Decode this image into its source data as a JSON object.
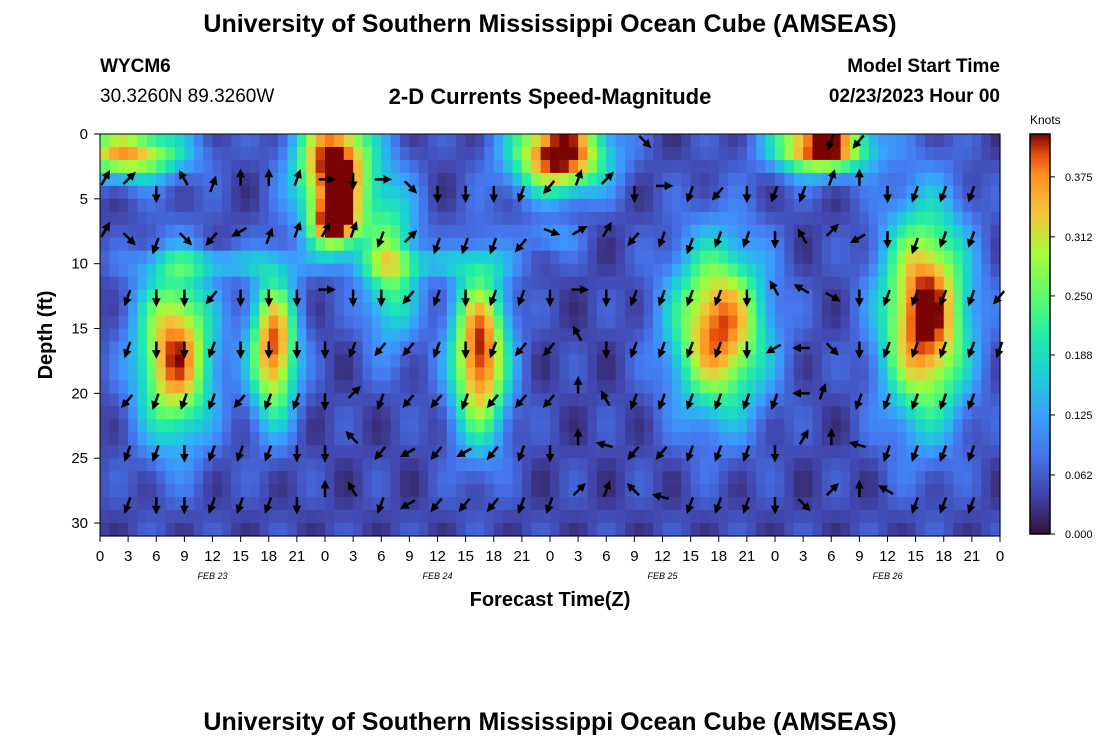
{
  "header": {
    "title": "University of Southern Mississippi Ocean Cube (AMSEAS)",
    "station": "WYCM6",
    "coords": "30.3260N  89.3260W",
    "subtitle": "2-D Currents Speed-Magnitude",
    "model_start_label": "Model Start Time",
    "model_start_value": "02/23/2023 Hour 00"
  },
  "footer": {
    "title": "University of Southern Mississippi Ocean Cube (AMSEAS)"
  },
  "chart_data": {
    "type": "heatmap",
    "title": "2-D Currents Speed-Magnitude",
    "xlabel": "Forecast Time(Z)",
    "ylabel": "Depth (ft)",
    "xlim": [
      0,
      96
    ],
    "ylim": [
      0,
      31
    ],
    "x_tick_values": [
      0,
      3,
      6,
      9,
      12,
      15,
      18,
      21,
      24,
      27,
      30,
      33,
      36,
      39,
      42,
      45,
      48,
      51,
      54,
      57,
      60,
      63,
      66,
      69,
      72,
      75,
      78,
      81,
      84,
      87,
      90,
      93,
      96
    ],
    "x_tick_labels": [
      "0",
      "3",
      "6",
      "9",
      "12",
      "15",
      "18",
      "21",
      "0",
      "3",
      "6",
      "9",
      "12",
      "15",
      "18",
      "21",
      "0",
      "3",
      "6",
      "9",
      "12",
      "15",
      "18",
      "21",
      "0",
      "3",
      "6",
      "9",
      "12",
      "15",
      "18",
      "21",
      "0"
    ],
    "y_ticks": [
      0,
      5,
      10,
      15,
      20,
      25,
      30
    ],
    "day_labels": [
      {
        "hour": 12,
        "label": "FEB 23"
      },
      {
        "hour": 36,
        "label": "FEB 24"
      },
      {
        "hour": 60,
        "label": "FEB 25"
      },
      {
        "hour": 84,
        "label": "FEB 26"
      }
    ],
    "colorbar": {
      "unit": "Knots",
      "min": 0.0,
      "max": 0.42,
      "ticks": [
        "0.000",
        "0.062",
        "0.125",
        "0.188",
        "0.250",
        "0.312",
        "0.375"
      ],
      "tick_values": [
        0.0,
        0.062,
        0.125,
        0.188,
        0.25,
        0.312,
        0.375
      ]
    },
    "high_speed_blobs": [
      {
        "t": 3,
        "d": 1.5,
        "st": 6,
        "sd": 2,
        "amp": 0.32
      },
      {
        "t": 25,
        "d": 2.5,
        "st": 4,
        "sd": 4.5,
        "amp": 0.42
      },
      {
        "t": 25,
        "d": 7,
        "st": 2.5,
        "sd": 2,
        "amp": 0.3
      },
      {
        "t": 49,
        "d": 1.5,
        "st": 5,
        "sd": 3,
        "amp": 0.42
      },
      {
        "t": 77,
        "d": 1,
        "st": 5,
        "sd": 2,
        "amp": 0.42
      },
      {
        "t": 8,
        "d": 17,
        "st": 4,
        "sd": 6.5,
        "amp": 0.36
      },
      {
        "t": 18.5,
        "d": 16.5,
        "st": 2.5,
        "sd": 5.5,
        "amp": 0.36
      },
      {
        "t": 31,
        "d": 10,
        "st": 3,
        "sd": 6,
        "amp": 0.22
      },
      {
        "t": 40.5,
        "d": 17,
        "st": 3,
        "sd": 6.5,
        "amp": 0.38
      },
      {
        "t": 66,
        "d": 15,
        "st": 5,
        "sd": 6.5,
        "amp": 0.36
      },
      {
        "t": 88,
        "d": 14,
        "st": 4.5,
        "sd": 8,
        "amp": 0.4
      },
      {
        "t": 12,
        "d": 10,
        "st": 8,
        "sd": 1,
        "amp": 0.1
      },
      {
        "t": 35,
        "d": 10,
        "st": 10,
        "sd": 1,
        "amp": 0.08
      },
      {
        "t": 48,
        "d": 8,
        "st": 3,
        "sd": 1.2,
        "amp": 0.08
      }
    ],
    "vectors": [
      {
        "t": 0.5,
        "d": 3.5,
        "dir": 30
      },
      {
        "t": 3,
        "d": 3.5,
        "dir": 45
      },
      {
        "t": 6,
        "d": 4.5,
        "dir": 180
      },
      {
        "t": 9,
        "d": 3.5,
        "dir": 330
      },
      {
        "t": 12,
        "d": 4,
        "dir": 20
      },
      {
        "t": 15,
        "d": 3.5,
        "dir": 0
      },
      {
        "t": 18,
        "d": 3.5,
        "dir": 0
      },
      {
        "t": 21,
        "d": 3.5,
        "dir": 20
      },
      {
        "t": 24,
        "d": 3.5,
        "dir": 90
      },
      {
        "t": 27,
        "d": 3.5,
        "dir": 180
      },
      {
        "t": 30,
        "d": 3.5,
        "dir": 90
      },
      {
        "t": 33,
        "d": 4,
        "dir": 135
      },
      {
        "t": 36,
        "d": 4.5,
        "dir": 180
      },
      {
        "t": 39,
        "d": 4.5,
        "dir": 180
      },
      {
        "t": 42,
        "d": 4.5,
        "dir": 180
      },
      {
        "t": 45,
        "d": 4.5,
        "dir": 200
      },
      {
        "t": 48,
        "d": 4,
        "dir": 220
      },
      {
        "t": 51,
        "d": 3.5,
        "dir": 20
      },
      {
        "t": 54,
        "d": 3.5,
        "dir": 45
      },
      {
        "t": 57,
        "d": 4.5,
        "dir": 180
      },
      {
        "t": 60,
        "d": 4,
        "dir": 90
      },
      {
        "t": 63,
        "d": 4.5,
        "dir": 200
      },
      {
        "t": 66,
        "d": 4.5,
        "dir": 220
      },
      {
        "t": 69,
        "d": 4.5,
        "dir": 180
      },
      {
        "t": 72,
        "d": 4.5,
        "dir": 200
      },
      {
        "t": 75,
        "d": 4.5,
        "dir": 200
      },
      {
        "t": 78,
        "d": 3.5,
        "dir": 20
      },
      {
        "t": 81,
        "d": 3.5,
        "dir": 0
      },
      {
        "t": 84,
        "d": 4.5,
        "dir": 180
      },
      {
        "t": 87,
        "d": 4.5,
        "dir": 200
      },
      {
        "t": 90,
        "d": 4.5,
        "dir": 200
      },
      {
        "t": 93,
        "d": 4.5,
        "dir": 200
      },
      {
        "t": 0.5,
        "d": 7.5,
        "dir": 30
      },
      {
        "t": 3,
        "d": 8,
        "dir": 135
      },
      {
        "t": 6,
        "d": 8.5,
        "dir": 200
      },
      {
        "t": 9,
        "d": 8,
        "dir": 135
      },
      {
        "t": 12,
        "d": 8,
        "dir": 220
      },
      {
        "t": 15,
        "d": 7.5,
        "dir": 240
      },
      {
        "t": 18,
        "d": 8,
        "dir": 20
      },
      {
        "t": 21,
        "d": 7.5,
        "dir": 20
      },
      {
        "t": 24,
        "d": 7.5,
        "dir": 30
      },
      {
        "t": 27,
        "d": 7.5,
        "dir": 20
      },
      {
        "t": 30,
        "d": 8,
        "dir": 200
      },
      {
        "t": 33,
        "d": 8,
        "dir": 45
      },
      {
        "t": 36,
        "d": 8.5,
        "dir": 200
      },
      {
        "t": 39,
        "d": 8.5,
        "dir": 200
      },
      {
        "t": 42,
        "d": 8.5,
        "dir": 200
      },
      {
        "t": 45,
        "d": 8.5,
        "dir": 220
      },
      {
        "t": 48,
        "d": 7.5,
        "dir": 110
      },
      {
        "t": 51,
        "d": 7.5,
        "dir": 60
      },
      {
        "t": 54,
        "d": 7.5,
        "dir": 30
      },
      {
        "t": 57,
        "d": 8,
        "dir": 220
      },
      {
        "t": 60,
        "d": 8,
        "dir": 200
      },
      {
        "t": 63,
        "d": 8.5,
        "dir": 200
      },
      {
        "t": 66,
        "d": 8,
        "dir": 200
      },
      {
        "t": 69,
        "d": 8,
        "dir": 200
      },
      {
        "t": 72,
        "d": 8,
        "dir": 180
      },
      {
        "t": 75,
        "d": 8,
        "dir": 330
      },
      {
        "t": 78,
        "d": 7.5,
        "dir": 45
      },
      {
        "t": 81,
        "d": 8,
        "dir": 240
      },
      {
        "t": 84,
        "d": 8,
        "dir": 180
      },
      {
        "t": 87,
        "d": 8.5,
        "dir": 200
      },
      {
        "t": 90,
        "d": 8,
        "dir": 200
      },
      {
        "t": 93,
        "d": 8,
        "dir": 200
      },
      {
        "t": 3,
        "d": 12.5,
        "dir": 200
      },
      {
        "t": 6,
        "d": 12.5,
        "dir": 180
      },
      {
        "t": 9,
        "d": 12.5,
        "dir": 180
      },
      {
        "t": 12,
        "d": 12.5,
        "dir": 220
      },
      {
        "t": 15,
        "d": 12.5,
        "dir": 180
      },
      {
        "t": 18,
        "d": 12.5,
        "dir": 180
      },
      {
        "t": 21,
        "d": 12.5,
        "dir": 180
      },
      {
        "t": 24,
        "d": 12,
        "dir": 90
      },
      {
        "t": 27,
        "d": 12.5,
        "dir": 180
      },
      {
        "t": 30,
        "d": 12.5,
        "dir": 180
      },
      {
        "t": 33,
        "d": 12.5,
        "dir": 220
      },
      {
        "t": 36,
        "d": 12.5,
        "dir": 200
      },
      {
        "t": 39,
        "d": 12.5,
        "dir": 180
      },
      {
        "t": 42,
        "d": 12.5,
        "dir": 200
      },
      {
        "t": 45,
        "d": 12.5,
        "dir": 200
      },
      {
        "t": 48,
        "d": 12.5,
        "dir": 180
      },
      {
        "t": 51,
        "d": 12,
        "dir": 90
      },
      {
        "t": 54,
        "d": 12.5,
        "dir": 180
      },
      {
        "t": 57,
        "d": 12.5,
        "dir": 200
      },
      {
        "t": 60,
        "d": 12.5,
        "dir": 200
      },
      {
        "t": 63,
        "d": 12.5,
        "dir": 200
      },
      {
        "t": 66,
        "d": 12.5,
        "dir": 200
      },
      {
        "t": 69,
        "d": 12.5,
        "dir": 180
      },
      {
        "t": 72,
        "d": 12,
        "dir": 330
      },
      {
        "t": 75,
        "d": 12,
        "dir": 300
      },
      {
        "t": 78,
        "d": 12.5,
        "dir": 120
      },
      {
        "t": 81,
        "d": 12.5,
        "dir": 180
      },
      {
        "t": 84,
        "d": 12.5,
        "dir": 200
      },
      {
        "t": 87,
        "d": 12.5,
        "dir": 200
      },
      {
        "t": 90,
        "d": 12.5,
        "dir": 200
      },
      {
        "t": 93,
        "d": 12.5,
        "dir": 200
      },
      {
        "t": 96,
        "d": 12.5,
        "dir": 220
      },
      {
        "t": 3,
        "d": 16.5,
        "dir": 200
      },
      {
        "t": 6,
        "d": 16.5,
        "dir": 180
      },
      {
        "t": 9,
        "d": 16.5,
        "dir": 180
      },
      {
        "t": 12,
        "d": 16.5,
        "dir": 200
      },
      {
        "t": 15,
        "d": 16.5,
        "dir": 180
      },
      {
        "t": 18,
        "d": 16.5,
        "dir": 180
      },
      {
        "t": 21,
        "d": 16.5,
        "dir": 180
      },
      {
        "t": 24,
        "d": 16.5,
        "dir": 180
      },
      {
        "t": 27,
        "d": 16.5,
        "dir": 200
      },
      {
        "t": 30,
        "d": 16.5,
        "dir": 220
      },
      {
        "t": 33,
        "d": 16.5,
        "dir": 220
      },
      {
        "t": 36,
        "d": 16.5,
        "dir": 200
      },
      {
        "t": 39,
        "d": 16.5,
        "dir": 180
      },
      {
        "t": 42,
        "d": 16.5,
        "dir": 200
      },
      {
        "t": 45,
        "d": 16.5,
        "dir": 220
      },
      {
        "t": 48,
        "d": 16.5,
        "dir": 220
      },
      {
        "t": 51,
        "d": 15.5,
        "dir": 330
      },
      {
        "t": 54,
        "d": 16.5,
        "dir": 180
      },
      {
        "t": 57,
        "d": 16.5,
        "dir": 200
      },
      {
        "t": 60,
        "d": 16.5,
        "dir": 200
      },
      {
        "t": 63,
        "d": 16.5,
        "dir": 200
      },
      {
        "t": 66,
        "d": 16.5,
        "dir": 200
      },
      {
        "t": 69,
        "d": 16.5,
        "dir": 180
      },
      {
        "t": 72,
        "d": 16.5,
        "dir": 240
      },
      {
        "t": 75,
        "d": 16.5,
        "dir": 270
      },
      {
        "t": 78,
        "d": 16.5,
        "dir": 135
      },
      {
        "t": 81,
        "d": 16.5,
        "dir": 180
      },
      {
        "t": 84,
        "d": 16.5,
        "dir": 200
      },
      {
        "t": 87,
        "d": 16.5,
        "dir": 200
      },
      {
        "t": 90,
        "d": 16.5,
        "dir": 200
      },
      {
        "t": 93,
        "d": 16.5,
        "dir": 200
      },
      {
        "t": 96,
        "d": 16.5,
        "dir": 200
      },
      {
        "t": 3,
        "d": 20.5,
        "dir": 220
      },
      {
        "t": 6,
        "d": 20.5,
        "dir": 200
      },
      {
        "t": 9,
        "d": 20.5,
        "dir": 200
      },
      {
        "t": 12,
        "d": 20.5,
        "dir": 200
      },
      {
        "t": 15,
        "d": 20.5,
        "dir": 220
      },
      {
        "t": 18,
        "d": 20.5,
        "dir": 200
      },
      {
        "t": 21,
        "d": 20.5,
        "dir": 200
      },
      {
        "t": 24,
        "d": 20.5,
        "dir": 180
      },
      {
        "t": 27,
        "d": 20,
        "dir": 45
      },
      {
        "t": 30,
        "d": 20.5,
        "dir": 200
      },
      {
        "t": 33,
        "d": 20.5,
        "dir": 220
      },
      {
        "t": 36,
        "d": 20.5,
        "dir": 220
      },
      {
        "t": 39,
        "d": 20.5,
        "dir": 200
      },
      {
        "t": 42,
        "d": 20.5,
        "dir": 220
      },
      {
        "t": 45,
        "d": 20.5,
        "dir": 220
      },
      {
        "t": 48,
        "d": 20.5,
        "dir": 220
      },
      {
        "t": 51,
        "d": 19.5,
        "dir": 0
      },
      {
        "t": 54,
        "d": 20.5,
        "dir": 330
      },
      {
        "t": 57,
        "d": 20.5,
        "dir": 200
      },
      {
        "t": 60,
        "d": 20.5,
        "dir": 200
      },
      {
        "t": 63,
        "d": 20.5,
        "dir": 200
      },
      {
        "t": 66,
        "d": 20.5,
        "dir": 200
      },
      {
        "t": 69,
        "d": 20.5,
        "dir": 200
      },
      {
        "t": 72,
        "d": 20.5,
        "dir": 200
      },
      {
        "t": 75,
        "d": 20,
        "dir": 270
      },
      {
        "t": 77,
        "d": 20,
        "dir": 20
      },
      {
        "t": 81,
        "d": 20.5,
        "dir": 200
      },
      {
        "t": 84,
        "d": 20.5,
        "dir": 200
      },
      {
        "t": 87,
        "d": 20.5,
        "dir": 200
      },
      {
        "t": 90,
        "d": 20.5,
        "dir": 200
      },
      {
        "t": 93,
        "d": 20.5,
        "dir": 200
      },
      {
        "t": 3,
        "d": 24.5,
        "dir": 200
      },
      {
        "t": 6,
        "d": 24.5,
        "dir": 200
      },
      {
        "t": 9,
        "d": 24.5,
        "dir": 180
      },
      {
        "t": 12,
        "d": 24.5,
        "dir": 200
      },
      {
        "t": 15,
        "d": 24.5,
        "dir": 200
      },
      {
        "t": 18,
        "d": 24.5,
        "dir": 200
      },
      {
        "t": 21,
        "d": 24.5,
        "dir": 180
      },
      {
        "t": 24,
        "d": 24.5,
        "dir": 180
      },
      {
        "t": 27,
        "d": 23.5,
        "dir": 315
      },
      {
        "t": 30,
        "d": 24.5,
        "dir": 220
      },
      {
        "t": 33,
        "d": 24.5,
        "dir": 240
      },
      {
        "t": 36,
        "d": 24.5,
        "dir": 220
      },
      {
        "t": 39,
        "d": 24.5,
        "dir": 240
      },
      {
        "t": 42,
        "d": 24.5,
        "dir": 220
      },
      {
        "t": 45,
        "d": 24.5,
        "dir": 200
      },
      {
        "t": 48,
        "d": 24.5,
        "dir": 180
      },
      {
        "t": 51,
        "d": 23.5,
        "dir": 0
      },
      {
        "t": 54,
        "d": 24,
        "dir": 285
      },
      {
        "t": 57,
        "d": 24.5,
        "dir": 220
      },
      {
        "t": 60,
        "d": 24.5,
        "dir": 220
      },
      {
        "t": 63,
        "d": 24.5,
        "dir": 200
      },
      {
        "t": 66,
        "d": 24.5,
        "dir": 200
      },
      {
        "t": 69,
        "d": 24.5,
        "dir": 200
      },
      {
        "t": 72,
        "d": 24.5,
        "dir": 180
      },
      {
        "t": 75,
        "d": 23.5,
        "dir": 30
      },
      {
        "t": 78,
        "d": 23.5,
        "dir": 0
      },
      {
        "t": 81,
        "d": 24,
        "dir": 285
      },
      {
        "t": 84,
        "d": 24.5,
        "dir": 200
      },
      {
        "t": 87,
        "d": 24.5,
        "dir": 200
      },
      {
        "t": 90,
        "d": 24.5,
        "dir": 200
      },
      {
        "t": 93,
        "d": 24.5,
        "dir": 200
      },
      {
        "t": 3,
        "d": 28.5,
        "dir": 200
      },
      {
        "t": 6,
        "d": 28.5,
        "dir": 180
      },
      {
        "t": 9,
        "d": 28.5,
        "dir": 180
      },
      {
        "t": 12,
        "d": 28.5,
        "dir": 200
      },
      {
        "t": 15,
        "d": 28.5,
        "dir": 200
      },
      {
        "t": 18,
        "d": 28.5,
        "dir": 200
      },
      {
        "t": 21,
        "d": 28.5,
        "dir": 180
      },
      {
        "t": 24,
        "d": 27.5,
        "dir": 0
      },
      {
        "t": 27,
        "d": 27.5,
        "dir": 330
      },
      {
        "t": 30,
        "d": 28.5,
        "dir": 200
      },
      {
        "t": 33,
        "d": 28.5,
        "dir": 240
      },
      {
        "t": 36,
        "d": 28.5,
        "dir": 220
      },
      {
        "t": 39,
        "d": 28.5,
        "dir": 220
      },
      {
        "t": 42,
        "d": 28.5,
        "dir": 220
      },
      {
        "t": 45,
        "d": 28.5,
        "dir": 200
      },
      {
        "t": 48,
        "d": 28.5,
        "dir": 200
      },
      {
        "t": 51,
        "d": 27.5,
        "dir": 45
      },
      {
        "t": 54,
        "d": 27.5,
        "dir": 20
      },
      {
        "t": 57,
        "d": 27.5,
        "dir": 315
      },
      {
        "t": 60,
        "d": 28,
        "dir": 285
      },
      {
        "t": 63,
        "d": 28.5,
        "dir": 200
      },
      {
        "t": 66,
        "d": 28.5,
        "dir": 200
      },
      {
        "t": 69,
        "d": 28.5,
        "dir": 200
      },
      {
        "t": 72,
        "d": 28.5,
        "dir": 180
      },
      {
        "t": 75,
        "d": 28.5,
        "dir": 135
      },
      {
        "t": 78,
        "d": 27.5,
        "dir": 45
      },
      {
        "t": 81,
        "d": 27.5,
        "dir": 0
      },
      {
        "t": 84,
        "d": 27.5,
        "dir": 300
      },
      {
        "t": 87,
        "d": 28.5,
        "dir": 200
      },
      {
        "t": 90,
        "d": 28.5,
        "dir": 200
      },
      {
        "t": 93,
        "d": 28.5,
        "dir": 200
      },
      {
        "t": 58,
        "d": 0.5,
        "dir": 135
      },
      {
        "t": 78,
        "d": 0.5,
        "dir": 200
      },
      {
        "t": 81,
        "d": 0.5,
        "dir": 220
      }
    ]
  }
}
